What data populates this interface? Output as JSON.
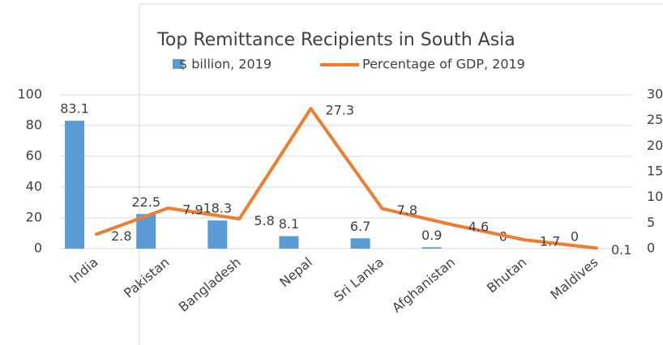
{
  "chart_data": {
    "type": "bar_line",
    "title": "Top Remittance Recipients in South Asia",
    "categories": [
      "India",
      "Pakistan",
      "Bangladesh",
      "Nepal",
      "Sri Lanka",
      "Afghanistan",
      "Bhutan",
      "Maldives"
    ],
    "series": [
      {
        "name": "$ billion, 2019",
        "type": "bar",
        "color": "#5b9bd5",
        "values": [
          83.1,
          22.5,
          18.3,
          8.1,
          6.7,
          0.9,
          0,
          0
        ]
      },
      {
        "name": "Percentage of GDP, 2019",
        "type": "line",
        "axis": "y2",
        "color": "#ed7d31",
        "values": [
          2.8,
          7.9,
          5.8,
          27.3,
          7.8,
          4.6,
          1.7,
          0.1
        ]
      }
    ],
    "ylim": [
      0,
      100
    ],
    "yticks": [
      0,
      20,
      40,
      60,
      80,
      100
    ],
    "y2lim": [
      0,
      30
    ],
    "y2ticks": [
      0,
      5,
      10,
      15,
      20,
      25,
      30
    ],
    "grid": true,
    "legend": "top"
  }
}
